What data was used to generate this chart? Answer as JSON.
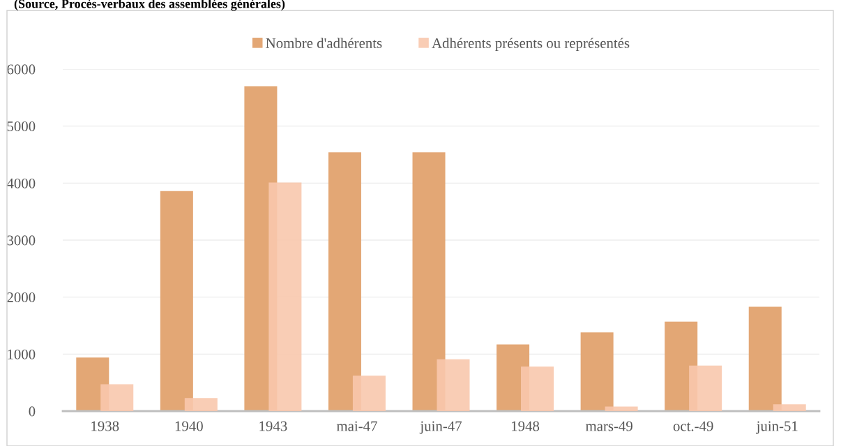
{
  "chart_data": {
    "type": "bar",
    "title": "(Source, Procès-verbaux des assemblées générales)",
    "categories": [
      "1938",
      "1940",
      "1943",
      "mai-47",
      "juin-47",
      "1948",
      "mars-49",
      "oct.-49",
      "juin-51"
    ],
    "series": [
      {
        "name": "Nombre d'adhérents",
        "color": "#e3a775",
        "values": [
          940,
          3860,
          5700,
          4540,
          4540,
          1170,
          1380,
          1570,
          1830
        ]
      },
      {
        "name": "Adhérents présents ou représentés",
        "color": "#f8c8ad",
        "values": [
          470,
          230,
          4010,
          620,
          910,
          780,
          80,
          800,
          120
        ]
      }
    ],
    "ylim": [
      0,
      6000
    ],
    "yticks": [
      0,
      1000,
      2000,
      3000,
      4000,
      5000,
      6000
    ],
    "grid": "y",
    "legend": "top"
  }
}
